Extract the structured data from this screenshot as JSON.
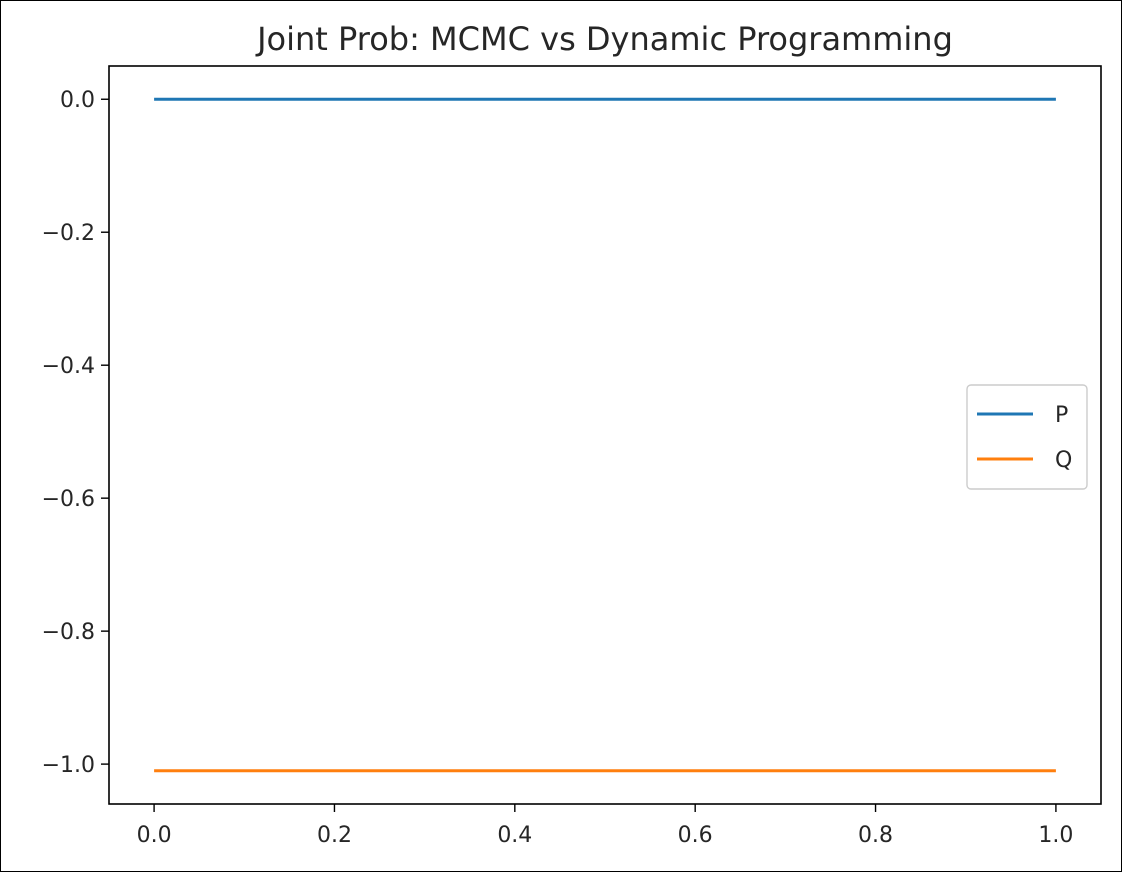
{
  "chart_data": {
    "type": "line",
    "title": "Joint Prob: MCMC vs Dynamic Programming",
    "xlabel": "",
    "ylabel": "",
    "xlim": [
      -0.05,
      1.05
    ],
    "ylim": [
      -1.06,
      0.05
    ],
    "xticks": [
      0.0,
      0.2,
      0.4,
      0.6,
      0.8,
      1.0
    ],
    "xtick_labels": [
      "0.0",
      "0.2",
      "0.4",
      "0.6",
      "0.8",
      "1.0"
    ],
    "yticks": [
      0.0,
      -0.2,
      -0.4,
      -0.6,
      -0.8,
      -1.0
    ],
    "ytick_labels": [
      "0.0",
      "−0.2",
      "−0.4",
      "−0.6",
      "−0.8",
      "−1.0"
    ],
    "grid": false,
    "legend_position": "center-right",
    "series": [
      {
        "name": "P",
        "color": "#1f77b4",
        "x": [
          0.0,
          1.0
        ],
        "y": [
          0.0,
          0.0
        ]
      },
      {
        "name": "Q",
        "color": "#ff7f0e",
        "x": [
          0.0,
          1.0
        ],
        "y": [
          -1.01,
          -1.01
        ]
      }
    ]
  }
}
